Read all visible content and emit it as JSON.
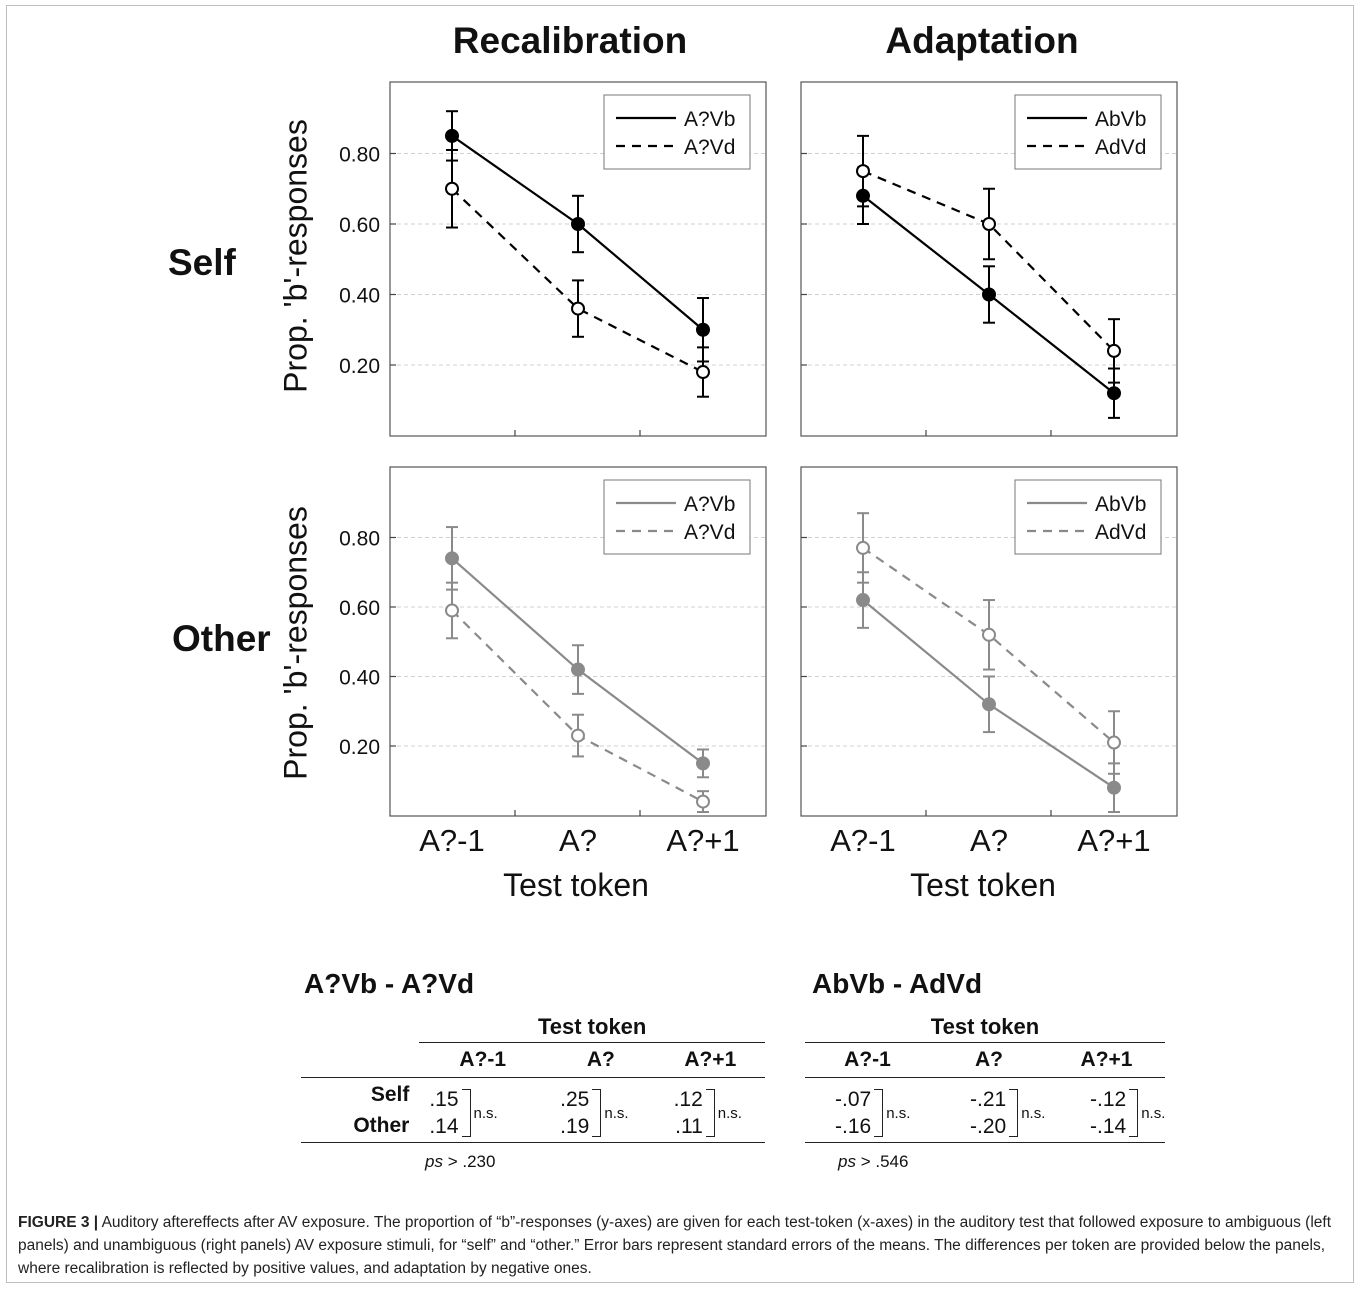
{
  "column_titles": [
    "Recalibration",
    "Adaptation"
  ],
  "row_titles": [
    "Self",
    "Other"
  ],
  "y_axis_label": "Prop. 'b'-responses",
  "x_axis_label": "Test token",
  "x_tick_labels": [
    "A?-1",
    "A?",
    "A?+1"
  ],
  "y_tick_labels": [
    "0.20",
    "0.40",
    "0.60",
    "0.80"
  ],
  "colors": {
    "self": "#000000",
    "other": "#8a8a8a",
    "grid": "#d0d0d0"
  },
  "chart_data": [
    {
      "type": "line",
      "panel": "Recalibration / Self",
      "categories": [
        "A?-1",
        "A?",
        "A?+1"
      ],
      "ylim": [
        0,
        1
      ],
      "series": [
        {
          "name": "A?Vb",
          "style": "solid",
          "marker": "filled",
          "values": [
            0.85,
            0.6,
            0.3
          ],
          "err": [
            0.07,
            0.08,
            0.09
          ]
        },
        {
          "name": "A?Vd",
          "style": "dashed",
          "marker": "open",
          "values": [
            0.7,
            0.36,
            0.18
          ],
          "err": [
            0.11,
            0.08,
            0.07
          ]
        }
      ]
    },
    {
      "type": "line",
      "panel": "Adaptation / Self",
      "categories": [
        "A?-1",
        "A?",
        "A?+1"
      ],
      "ylim": [
        0,
        1
      ],
      "series": [
        {
          "name": "AbVb",
          "style": "solid",
          "marker": "filled",
          "values": [
            0.68,
            0.4,
            0.12
          ],
          "err": [
            0.08,
            0.08,
            0.07
          ]
        },
        {
          "name": "AdVd",
          "style": "dashed",
          "marker": "open",
          "values": [
            0.75,
            0.6,
            0.24
          ],
          "err": [
            0.1,
            0.1,
            0.09
          ]
        }
      ]
    },
    {
      "type": "line",
      "panel": "Recalibration / Other",
      "categories": [
        "A?-1",
        "A?",
        "A?+1"
      ],
      "ylim": [
        0,
        1
      ],
      "series": [
        {
          "name": "A?Vb",
          "style": "solid",
          "marker": "filled",
          "values": [
            0.74,
            0.42,
            0.15
          ],
          "err": [
            0.09,
            0.07,
            0.04
          ]
        },
        {
          "name": "A?Vd",
          "style": "dashed",
          "marker": "open",
          "values": [
            0.59,
            0.23,
            0.04
          ],
          "err": [
            0.08,
            0.06,
            0.03
          ]
        }
      ]
    },
    {
      "type": "line",
      "panel": "Adaptation / Other",
      "categories": [
        "A?-1",
        "A?",
        "A?+1"
      ],
      "ylim": [
        0,
        1
      ],
      "series": [
        {
          "name": "AbVb",
          "style": "solid",
          "marker": "filled",
          "values": [
            0.62,
            0.32,
            0.08
          ],
          "err": [
            0.08,
            0.08,
            0.07
          ]
        },
        {
          "name": "AdVd",
          "style": "dashed",
          "marker": "open",
          "values": [
            0.77,
            0.52,
            0.21
          ],
          "err": [
            0.1,
            0.1,
            0.09
          ]
        }
      ]
    }
  ],
  "tables": [
    {
      "title": "A?Vb - A?Vd",
      "group_header": "Test token",
      "columns": [
        "A?-1",
        "A?",
        "A?+1"
      ],
      "rows": [
        "Self",
        "Other"
      ],
      "self": [
        ".15",
        ".25",
        ".12"
      ],
      "other": [
        ".14",
        ".19",
        ".11"
      ],
      "ns": "n.s.",
      "ps_prefix": "ps",
      "ps_value": " > .230"
    },
    {
      "title": "AbVb - AdVd",
      "group_header": "Test token",
      "columns": [
        "A?-1",
        "A?",
        "A?+1"
      ],
      "rows": [
        "Self",
        "Other"
      ],
      "self": [
        "-.07",
        "-.21",
        "-.12"
      ],
      "other": [
        "-.16",
        "-.20",
        "-.14"
      ],
      "ns": "n.s.",
      "ps_prefix": "ps",
      "ps_value": " > .546"
    }
  ],
  "caption": {
    "label": "FIGURE 3 |",
    "text": " Auditory aftereffects after AV exposure. The proportion of “b”-responses (y-axes) are given for each test-token (x-axes) in the auditory test that followed exposure to ambiguous (left panels) and unambiguous (right panels) AV exposure stimuli, for “self” and “other.” Error bars represent standard errors of the means. The differences per token are provided below the panels, where recalibration is reflected by positive values, and adaptation by negative ones."
  }
}
